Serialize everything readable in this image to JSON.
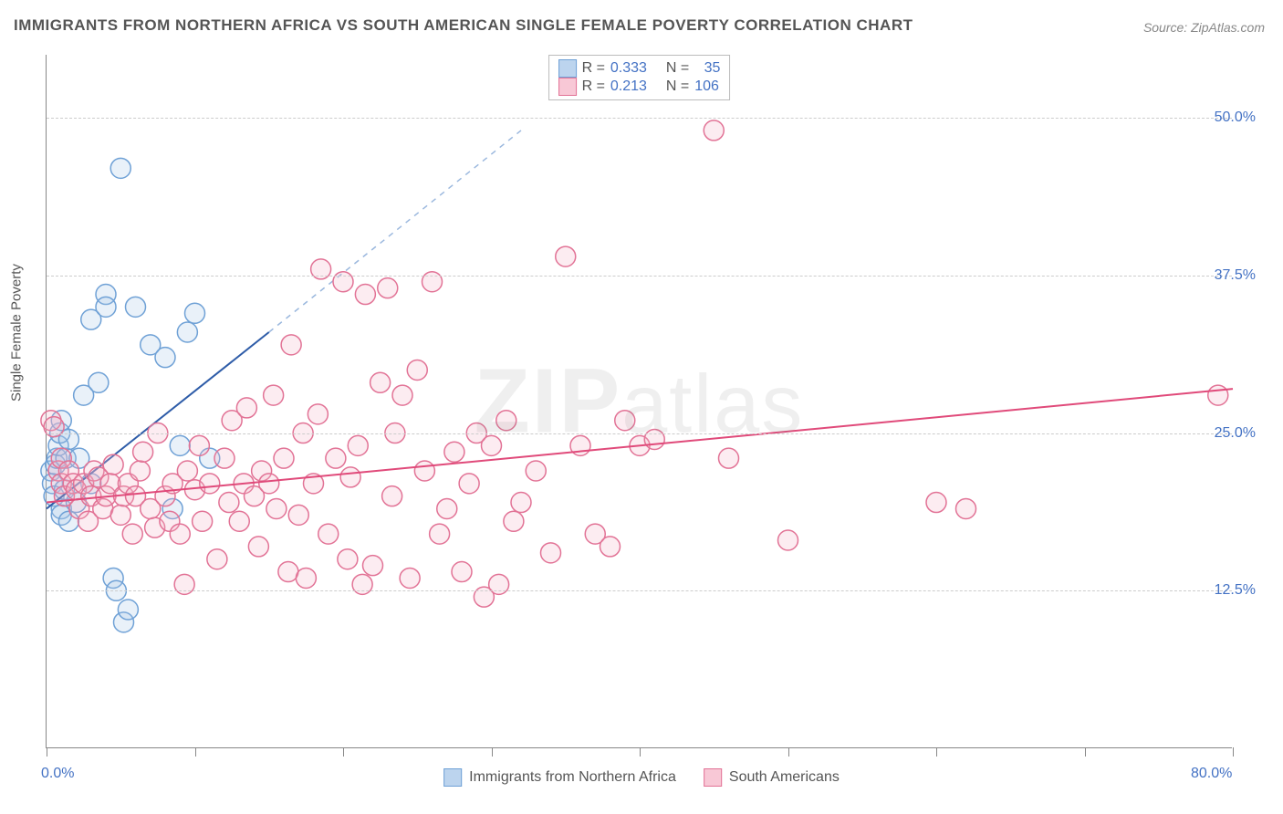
{
  "chart": {
    "title": "IMMIGRANTS FROM NORTHERN AFRICA VS SOUTH AMERICAN SINGLE FEMALE POVERTY CORRELATION CHART",
    "source": "Source: ZipAtlas.com",
    "y_axis_label": "Single Female Poverty",
    "watermark_a": "ZIP",
    "watermark_b": "atlas",
    "type": "scatter",
    "xlim": [
      0,
      80
    ],
    "ylim": [
      0,
      55
    ],
    "x_ticks": [
      0,
      10,
      20,
      30,
      40,
      50,
      60,
      70,
      80
    ],
    "x_tick_labels": {
      "0": "0.0%",
      "80": "80.0%"
    },
    "y_grid": [
      12.5,
      25.0,
      37.5,
      50.0
    ],
    "y_tick_labels": [
      "12.5%",
      "25.0%",
      "37.5%",
      "50.0%"
    ],
    "background_color": "#ffffff",
    "grid_color": "#cccccc",
    "axis_color": "#888888",
    "marker_radius": 11,
    "marker_stroke_width": 1.5,
    "marker_fill_opacity": 0.25,
    "trend_line_width": 2,
    "trend_dash_width": 1.5,
    "series": [
      {
        "id": "northern_africa",
        "label": "Immigrants from Northern Africa",
        "color_stroke": "#6fa1d6",
        "color_fill": "#a7c7e7",
        "swatch_fill": "#bcd4ee",
        "swatch_border": "#6fa1d6",
        "r": "0.333",
        "n": "35",
        "trend": {
          "x1": 0,
          "y1": 19,
          "x2": 15,
          "y2": 33,
          "solid_color": "#2e5ca8"
        },
        "trend_dash": {
          "x1": 15,
          "y1": 33,
          "x2": 32,
          "y2": 49,
          "dash_color": "#9bb8de"
        },
        "points": [
          [
            0.3,
            22
          ],
          [
            0.4,
            21
          ],
          [
            0.5,
            20
          ],
          [
            0.6,
            22.5
          ],
          [
            0.7,
            23
          ],
          [
            0.8,
            24
          ],
          [
            0.9,
            25
          ],
          [
            1.0,
            19
          ],
          [
            1.0,
            18.5
          ],
          [
            1.0,
            26
          ],
          [
            1.2,
            20.5
          ],
          [
            1.3,
            23
          ],
          [
            1.5,
            24.5
          ],
          [
            1.5,
            18
          ],
          [
            2.0,
            19.5
          ],
          [
            2.2,
            23
          ],
          [
            2.5,
            28
          ],
          [
            3.0,
            34
          ],
          [
            3.0,
            21
          ],
          [
            3.5,
            29
          ],
          [
            4.0,
            36
          ],
          [
            4.0,
            35
          ],
          [
            4.5,
            13.5
          ],
          [
            4.7,
            12.5
          ],
          [
            5.0,
            46
          ],
          [
            5.2,
            10
          ],
          [
            5.5,
            11
          ],
          [
            6.0,
            35
          ],
          [
            7.0,
            32
          ],
          [
            8.0,
            31
          ],
          [
            8.5,
            19
          ],
          [
            9.0,
            24
          ],
          [
            9.5,
            33
          ],
          [
            10,
            34.5
          ],
          [
            11,
            23
          ]
        ]
      },
      {
        "id": "south_americans",
        "label": "South Americans",
        "color_stroke": "#e27396",
        "color_fill": "#f5b5c8",
        "swatch_fill": "#f8c8d6",
        "swatch_border": "#e27396",
        "r": "0.213",
        "n": "106",
        "trend": {
          "x1": 0,
          "y1": 19.5,
          "x2": 80,
          "y2": 28.5,
          "solid_color": "#e04a7a"
        },
        "points": [
          [
            0.3,
            26
          ],
          [
            0.5,
            25.5
          ],
          [
            0.8,
            22
          ],
          [
            1.0,
            21
          ],
          [
            1.0,
            23
          ],
          [
            1.2,
            20
          ],
          [
            1.5,
            22
          ],
          [
            1.8,
            21
          ],
          [
            2.0,
            20.5
          ],
          [
            2.2,
            19
          ],
          [
            2.5,
            21
          ],
          [
            2.8,
            18
          ],
          [
            3.0,
            20
          ],
          [
            3.2,
            22
          ],
          [
            3.5,
            21.5
          ],
          [
            3.8,
            19
          ],
          [
            4.0,
            20
          ],
          [
            4.3,
            21
          ],
          [
            4.5,
            22.5
          ],
          [
            5.0,
            18.5
          ],
          [
            5.2,
            20
          ],
          [
            5.5,
            21
          ],
          [
            5.8,
            17
          ],
          [
            6.0,
            20
          ],
          [
            6.3,
            22
          ],
          [
            6.5,
            23.5
          ],
          [
            7.0,
            19
          ],
          [
            7.3,
            17.5
          ],
          [
            7.5,
            25
          ],
          [
            8.0,
            20
          ],
          [
            8.3,
            18
          ],
          [
            8.5,
            21
          ],
          [
            9.0,
            17
          ],
          [
            9.3,
            13
          ],
          [
            9.5,
            22
          ],
          [
            10,
            20.5
          ],
          [
            10.3,
            24
          ],
          [
            10.5,
            18
          ],
          [
            11,
            21
          ],
          [
            11.5,
            15
          ],
          [
            12,
            23
          ],
          [
            12.3,
            19.5
          ],
          [
            12.5,
            26
          ],
          [
            13,
            18
          ],
          [
            13.3,
            21
          ],
          [
            13.5,
            27
          ],
          [
            14,
            20
          ],
          [
            14.3,
            16
          ],
          [
            14.5,
            22
          ],
          [
            15,
            21
          ],
          [
            15.3,
            28
          ],
          [
            15.5,
            19
          ],
          [
            16,
            23
          ],
          [
            16.3,
            14
          ],
          [
            16.5,
            32
          ],
          [
            17,
            18.5
          ],
          [
            17.3,
            25
          ],
          [
            17.5,
            13.5
          ],
          [
            18,
            21
          ],
          [
            18.3,
            26.5
          ],
          [
            18.5,
            38
          ],
          [
            19,
            17
          ],
          [
            19.5,
            23
          ],
          [
            20,
            37
          ],
          [
            20.3,
            15
          ],
          [
            20.5,
            21.5
          ],
          [
            21,
            24
          ],
          [
            21.3,
            13
          ],
          [
            21.5,
            36
          ],
          [
            22,
            14.5
          ],
          [
            22.5,
            29
          ],
          [
            23,
            36.5
          ],
          [
            23.3,
            20
          ],
          [
            23.5,
            25
          ],
          [
            24,
            28
          ],
          [
            24.5,
            13.5
          ],
          [
            25,
            30
          ],
          [
            25.5,
            22
          ],
          [
            26,
            37
          ],
          [
            26.5,
            17
          ],
          [
            27,
            19
          ],
          [
            27.5,
            23.5
          ],
          [
            28,
            14
          ],
          [
            28.5,
            21
          ],
          [
            29,
            25
          ],
          [
            29.5,
            12
          ],
          [
            30,
            24
          ],
          [
            30.5,
            13
          ],
          [
            31,
            26
          ],
          [
            31.5,
            18
          ],
          [
            32,
            19.5
          ],
          [
            33,
            22
          ],
          [
            34,
            15.5
          ],
          [
            35,
            39
          ],
          [
            36,
            24
          ],
          [
            37,
            17
          ],
          [
            38,
            16
          ],
          [
            39,
            26
          ],
          [
            40,
            24
          ],
          [
            41,
            24.5
          ],
          [
            45,
            49
          ],
          [
            46,
            23
          ],
          [
            50,
            16.5
          ],
          [
            60,
            19.5
          ],
          [
            62,
            19
          ],
          [
            79,
            28
          ]
        ]
      }
    ],
    "legend_bottom": [
      {
        "label": "Immigrants from Northern Africa",
        "swatch_fill": "#bcd4ee",
        "swatch_border": "#6fa1d6"
      },
      {
        "label": "South Americans",
        "swatch_fill": "#f8c8d6",
        "swatch_border": "#e27396"
      }
    ],
    "legend_labels": {
      "r": "R =",
      "n": "N ="
    }
  }
}
